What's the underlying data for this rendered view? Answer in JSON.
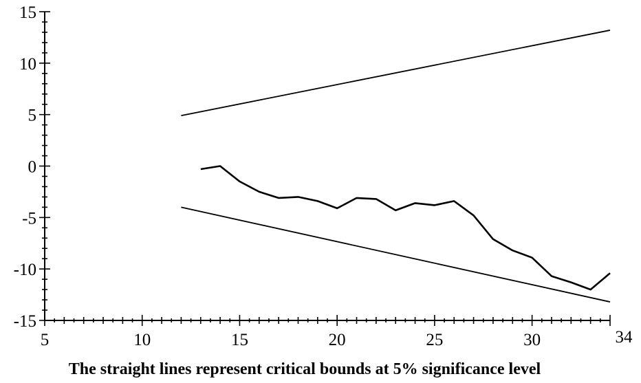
{
  "chart_data": {
    "type": "line",
    "title": "",
    "xlabel": "The straight lines represent critical bounds at 5% significance level",
    "ylabel": "",
    "xlim": [
      5,
      34
    ],
    "ylim": [
      -15,
      15
    ],
    "x_ticks": [
      "5",
      "10",
      "15",
      "20",
      "25",
      "30",
      "34"
    ],
    "y_ticks": [
      "15",
      "10",
      "5",
      "0",
      "-5",
      "-10",
      "-15"
    ],
    "x_tick_values": [
      5,
      10,
      15,
      20,
      25,
      30,
      34
    ],
    "y_tick_values": [
      15,
      10,
      5,
      0,
      -5,
      -10,
      -15
    ],
    "grid": false,
    "series": [
      {
        "x": [
          13,
          14,
          15,
          16,
          17,
          18,
          19,
          20,
          21,
          22,
          23,
          24,
          25,
          26,
          27,
          28,
          29,
          30,
          31,
          32,
          33,
          34
        ],
        "values": [
          -0.3,
          0.0,
          -1.5,
          -2.5,
          -3.1,
          -3.0,
          -3.4,
          -4.1,
          -3.1,
          -3.2,
          -4.3,
          -3.6,
          -3.8,
          -3.4,
          -4.8,
          -7.1,
          -8.2,
          -8.9,
          -10.7,
          -11.3,
          -12.0,
          -10.4
        ]
      },
      {
        "x": [
          12,
          34
        ],
        "values": [
          4.9,
          13.2
        ]
      },
      {
        "x": [
          12,
          34
        ],
        "values": [
          -4.0,
          -13.2
        ]
      }
    ]
  }
}
